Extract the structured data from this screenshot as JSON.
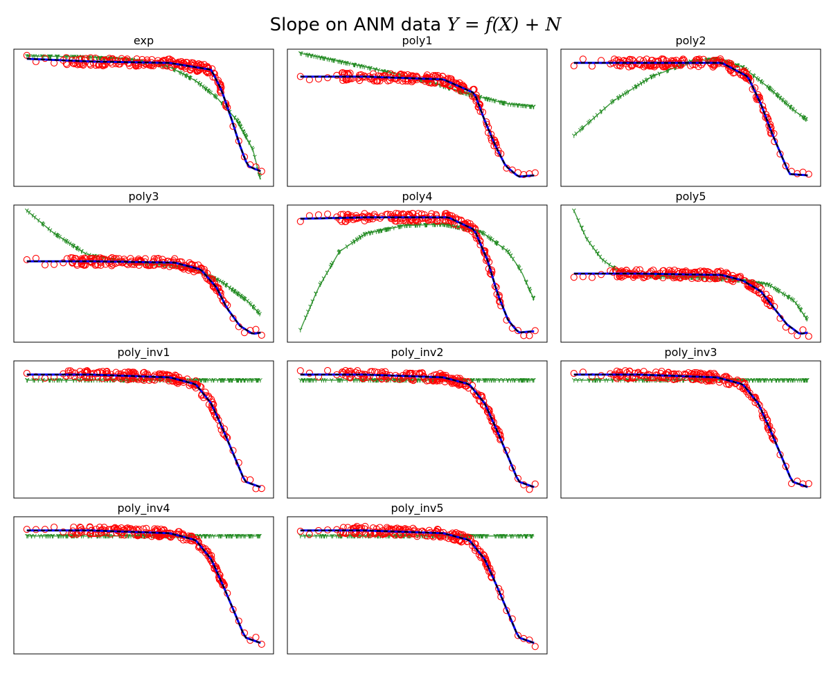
{
  "figure": {
    "title_prefix": "Slope on ANM data ",
    "title_math": "Y = f(X) + N"
  },
  "chart_data": [
    {
      "type": "line",
      "title": "exp",
      "grid": false,
      "series": [
        {
          "values": [
            [
              0.05,
              0.93
            ],
            [
              0.3,
              0.91
            ],
            [
              0.6,
              0.9
            ],
            [
              0.76,
              0.85
            ],
            [
              0.8,
              0.7
            ],
            [
              0.84,
              0.48
            ],
            [
              0.87,
              0.3
            ],
            [
              0.9,
              0.15
            ],
            [
              0.95,
              0.11
            ]
          ]
        },
        {
          "values": [
            [
              0.05,
              0.95
            ],
            [
              0.25,
              0.945
            ],
            [
              0.45,
              0.925
            ],
            [
              0.6,
              0.87
            ],
            [
              0.7,
              0.77
            ],
            [
              0.78,
              0.65
            ],
            [
              0.86,
              0.48
            ],
            [
              0.92,
              0.27
            ],
            [
              0.95,
              0.05
            ]
          ]
        }
      ]
    },
    {
      "type": "line",
      "title": "poly1",
      "grid": false,
      "series": [
        {
          "values": [
            [
              0.05,
              0.8
            ],
            [
              0.3,
              0.8
            ],
            [
              0.6,
              0.78
            ],
            [
              0.72,
              0.68
            ],
            [
              0.76,
              0.48
            ],
            [
              0.8,
              0.3
            ],
            [
              0.84,
              0.15
            ],
            [
              0.89,
              0.07
            ],
            [
              0.95,
              0.08
            ]
          ]
        },
        {
          "values": [
            [
              0.05,
              0.97
            ],
            [
              0.3,
              0.87
            ],
            [
              0.55,
              0.76
            ],
            [
              0.7,
              0.67
            ],
            [
              0.85,
              0.6
            ],
            [
              0.95,
              0.58
            ]
          ]
        }
      ]
    },
    {
      "type": "line",
      "title": "poly2",
      "grid": false,
      "series": [
        {
          "values": [
            [
              0.05,
              0.9
            ],
            [
              0.3,
              0.9
            ],
            [
              0.62,
              0.9
            ],
            [
              0.72,
              0.8
            ],
            [
              0.77,
              0.6
            ],
            [
              0.81,
              0.4
            ],
            [
              0.85,
              0.22
            ],
            [
              0.88,
              0.09
            ],
            [
              0.95,
              0.08
            ]
          ]
        },
        {
          "values": [
            [
              0.05,
              0.37
            ],
            [
              0.2,
              0.62
            ],
            [
              0.35,
              0.8
            ],
            [
              0.5,
              0.91
            ],
            [
              0.6,
              0.93
            ],
            [
              0.7,
              0.87
            ],
            [
              0.8,
              0.72
            ],
            [
              0.9,
              0.55
            ],
            [
              0.95,
              0.48
            ]
          ]
        }
      ]
    },
    {
      "type": "line",
      "title": "poly3",
      "grid": false,
      "series": [
        {
          "values": [
            [
              0.05,
              0.59
            ],
            [
              0.3,
              0.59
            ],
            [
              0.62,
              0.58
            ],
            [
              0.72,
              0.53
            ],
            [
              0.78,
              0.4
            ],
            [
              0.82,
              0.25
            ],
            [
              0.87,
              0.12
            ],
            [
              0.92,
              0.06
            ],
            [
              0.95,
              0.07
            ]
          ]
        },
        {
          "values": [
            [
              0.05,
              0.96
            ],
            [
              0.15,
              0.8
            ],
            [
              0.28,
              0.64
            ],
            [
              0.45,
              0.58
            ],
            [
              0.6,
              0.56
            ],
            [
              0.7,
              0.53
            ],
            [
              0.8,
              0.44
            ],
            [
              0.9,
              0.3
            ],
            [
              0.95,
              0.2
            ]
          ]
        }
      ]
    },
    {
      "type": "line",
      "title": "poly4",
      "grid": false,
      "series": [
        {
          "values": [
            [
              0.05,
              0.9
            ],
            [
              0.3,
              0.91
            ],
            [
              0.62,
              0.91
            ],
            [
              0.72,
              0.82
            ],
            [
              0.77,
              0.6
            ],
            [
              0.81,
              0.35
            ],
            [
              0.85,
              0.16
            ],
            [
              0.89,
              0.07
            ],
            [
              0.95,
              0.08
            ]
          ]
        },
        {
          "values": [
            [
              0.05,
              0.09
            ],
            [
              0.12,
              0.4
            ],
            [
              0.2,
              0.66
            ],
            [
              0.3,
              0.79
            ],
            [
              0.45,
              0.85
            ],
            [
              0.6,
              0.86
            ],
            [
              0.75,
              0.8
            ],
            [
              0.85,
              0.66
            ],
            [
              0.9,
              0.52
            ],
            [
              0.95,
              0.31
            ]
          ]
        }
      ]
    },
    {
      "type": "line",
      "title": "poly5",
      "grid": false,
      "series": [
        {
          "values": [
            [
              0.05,
              0.5
            ],
            [
              0.3,
              0.5
            ],
            [
              0.62,
              0.49
            ],
            [
              0.7,
              0.45
            ],
            [
              0.77,
              0.37
            ],
            [
              0.82,
              0.25
            ],
            [
              0.87,
              0.13
            ],
            [
              0.92,
              0.06
            ],
            [
              0.95,
              0.07
            ]
          ]
        },
        {
          "values": [
            [
              0.05,
              0.96
            ],
            [
              0.1,
              0.75
            ],
            [
              0.16,
              0.6
            ],
            [
              0.22,
              0.52
            ],
            [
              0.35,
              0.48
            ],
            [
              0.55,
              0.47
            ],
            [
              0.7,
              0.45
            ],
            [
              0.8,
              0.42
            ],
            [
              0.9,
              0.3
            ],
            [
              0.95,
              0.16
            ]
          ]
        }
      ]
    },
    {
      "type": "line",
      "title": "poly_inv1",
      "grid": false,
      "series": [
        {
          "values": [
            [
              0.05,
              0.9
            ],
            [
              0.3,
              0.9
            ],
            [
              0.6,
              0.88
            ],
            [
              0.7,
              0.83
            ],
            [
              0.76,
              0.69
            ],
            [
              0.81,
              0.48
            ],
            [
              0.85,
              0.3
            ],
            [
              0.89,
              0.12
            ],
            [
              0.95,
              0.08
            ]
          ]
        },
        {
          "values": [
            [
              0.05,
              0.86
            ],
            [
              0.5,
              0.86
            ],
            [
              0.95,
              0.86
            ]
          ]
        }
      ]
    },
    {
      "type": "line",
      "title": "poly_inv2",
      "grid": false,
      "series": [
        {
          "values": [
            [
              0.05,
              0.9
            ],
            [
              0.3,
              0.9
            ],
            [
              0.6,
              0.88
            ],
            [
              0.7,
              0.83
            ],
            [
              0.76,
              0.69
            ],
            [
              0.81,
              0.48
            ],
            [
              0.85,
              0.3
            ],
            [
              0.89,
              0.12
            ],
            [
              0.95,
              0.08
            ]
          ]
        },
        {
          "values": [
            [
              0.05,
              0.86
            ],
            [
              0.5,
              0.86
            ],
            [
              0.95,
              0.86
            ]
          ]
        }
      ]
    },
    {
      "type": "line",
      "title": "poly_inv3",
      "grid": false,
      "series": [
        {
          "values": [
            [
              0.05,
              0.9
            ],
            [
              0.3,
              0.9
            ],
            [
              0.6,
              0.88
            ],
            [
              0.7,
              0.83
            ],
            [
              0.76,
              0.69
            ],
            [
              0.81,
              0.48
            ],
            [
              0.85,
              0.3
            ],
            [
              0.89,
              0.12
            ],
            [
              0.95,
              0.08
            ]
          ]
        },
        {
          "values": [
            [
              0.05,
              0.86
            ],
            [
              0.5,
              0.86
            ],
            [
              0.95,
              0.86
            ]
          ]
        }
      ]
    },
    {
      "type": "line",
      "title": "poly_inv4",
      "grid": false,
      "series": [
        {
          "values": [
            [
              0.05,
              0.9
            ],
            [
              0.3,
              0.9
            ],
            [
              0.6,
              0.88
            ],
            [
              0.7,
              0.83
            ],
            [
              0.76,
              0.69
            ],
            [
              0.81,
              0.48
            ],
            [
              0.85,
              0.3
            ],
            [
              0.89,
              0.12
            ],
            [
              0.95,
              0.08
            ]
          ]
        },
        {
          "values": [
            [
              0.05,
              0.86
            ],
            [
              0.5,
              0.86
            ],
            [
              0.95,
              0.86
            ]
          ]
        }
      ]
    },
    {
      "type": "line",
      "title": "poly_inv5",
      "grid": false,
      "series": [
        {
          "values": [
            [
              0.05,
              0.9
            ],
            [
              0.3,
              0.9
            ],
            [
              0.6,
              0.88
            ],
            [
              0.7,
              0.83
            ],
            [
              0.76,
              0.69
            ],
            [
              0.81,
              0.48
            ],
            [
              0.85,
              0.3
            ],
            [
              0.89,
              0.12
            ],
            [
              0.95,
              0.08
            ]
          ]
        },
        {
          "values": [
            [
              0.05,
              0.86
            ],
            [
              0.5,
              0.86
            ],
            [
              0.95,
              0.86
            ]
          ]
        }
      ]
    }
  ],
  "colors": {
    "scatter": "#ff0000",
    "true_curve": "#0000ff",
    "fit_dashed": "#000000",
    "model_fit": "#228b22",
    "axes": "#000000"
  }
}
